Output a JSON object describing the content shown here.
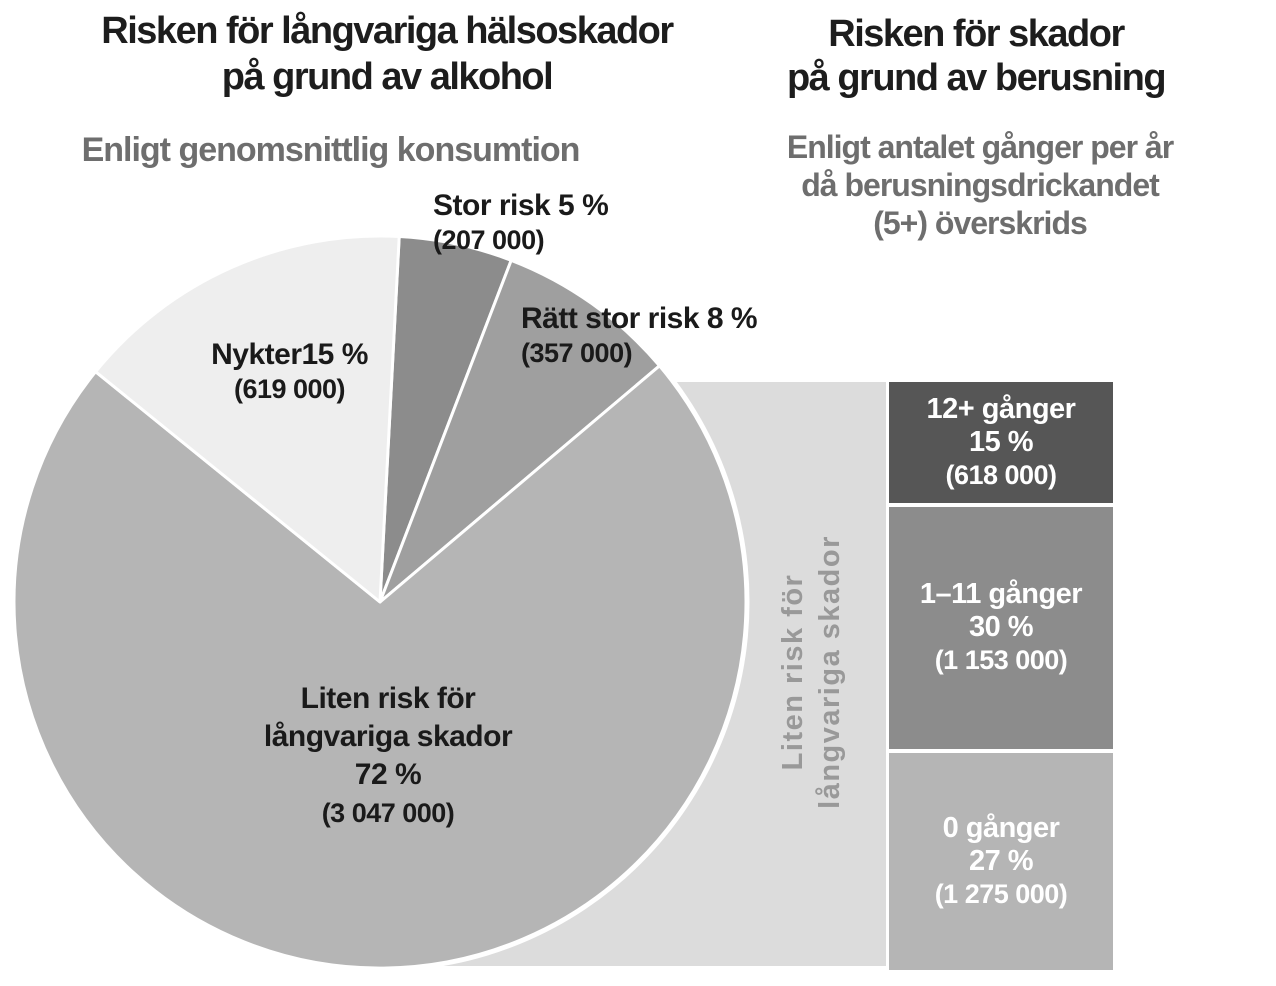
{
  "header_left": {
    "title_lines": [
      "Risken för långvariga hälsoskador",
      "på grund av alkohol"
    ],
    "subtitle_lines": [
      "Enligt genomsnittlig konsumtion"
    ]
  },
  "header_right": {
    "title_lines": [
      "Risken för skador",
      "på grund av berusning"
    ],
    "subtitle_lines": [
      "Enligt antalet gånger per år",
      "då berusningsdrickandet",
      "(5+) överskrids"
    ]
  },
  "connector": {
    "label_lines": [
      "Liten risk för",
      "långvariga skador"
    ],
    "fill_color": "#dcdcdc",
    "text_color": "#999999"
  },
  "colors": {
    "background": "#ffffff",
    "title_text": "#1d1d1d",
    "subtitle_text": "#6e6e6e",
    "pie_label_text": "#1a1a1a",
    "bar_label_text": "#ffffff",
    "slice_separator": "#ffffff"
  },
  "chart_data": [
    {
      "type": "pie",
      "title": "Risken för långvariga hälsoskador på grund av alkohol",
      "subtitle": "Enligt genomsnittlig konsumtion",
      "start_angle_deg": 3,
      "direction": "clockwise-from-top",
      "slices": [
        {
          "name": "stor-risk",
          "pct": 5,
          "count": 207000,
          "color": "#8c8c8c",
          "display_lines": [
            "Stor risk 5 %",
            "(207 000)"
          ]
        },
        {
          "name": "ratt-stor-risk",
          "pct": 8,
          "count": 357000,
          "color": "#9f9f9f",
          "display_lines": [
            "Rätt stor risk 8 %",
            "(357 000)"
          ]
        },
        {
          "name": "liten-risk",
          "pct": 72,
          "count": 3047000,
          "color": "#b5b5b5",
          "display_lines": [
            "Liten risk för",
            "långvariga skador",
            "72 %",
            "(3 047 000)"
          ]
        },
        {
          "name": "nykter",
          "pct": 15,
          "count": 619000,
          "color": "#eeeeee",
          "display_lines": [
            "Nykter15 %",
            "(619 000)"
          ]
        }
      ]
    },
    {
      "type": "bar",
      "stacked": true,
      "title": "Risken för skador på grund av berusning",
      "subtitle": "Enligt antalet gånger per år då berusningsdrickandet (5+) överskrids",
      "total_pct_shown": 72,
      "segments": [
        {
          "name": "12plus-ganger",
          "pct": 15,
          "count": 618000,
          "color": "#565656",
          "display_lines": [
            "12+ gånger",
            "15 %",
            "(618 000)"
          ]
        },
        {
          "name": "1-11-ganger",
          "pct": 30,
          "count": 1153000,
          "color": "#8c8c8c",
          "display_lines": [
            "1–11 gånger",
            "30 %",
            "(1 153 000)"
          ]
        },
        {
          "name": "0-ganger",
          "pct": 27,
          "count": 1275000,
          "color": "#b5b5b5",
          "display_lines": [
            "0 gånger",
            "27 %",
            "(1 275 000)"
          ]
        }
      ]
    }
  ]
}
